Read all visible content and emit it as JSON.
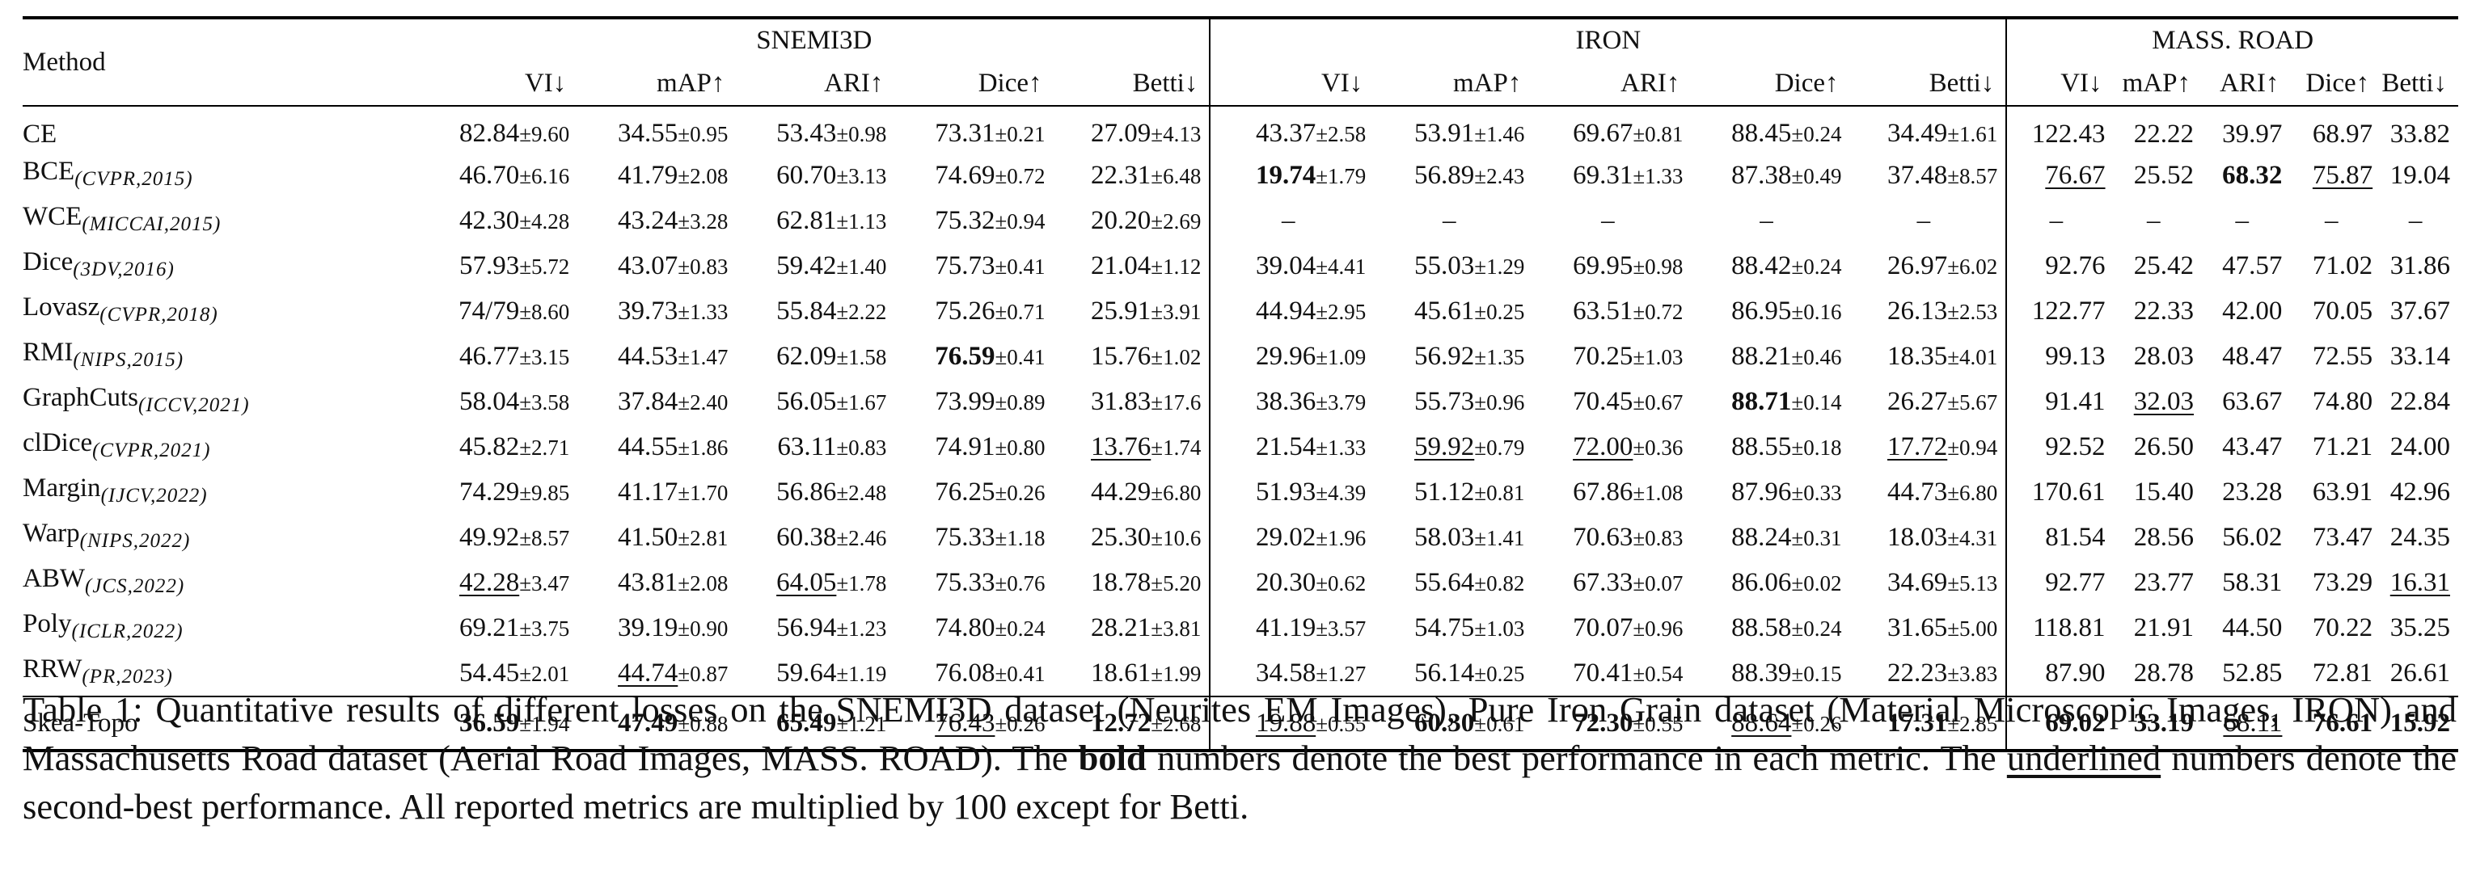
{
  "table": {
    "method_header": "Method",
    "groups": [
      {
        "name": "SNEMI3D",
        "metrics": [
          "VI↓",
          "mAP↑",
          "ARI↑",
          "Dice↑",
          "Betti↓"
        ]
      },
      {
        "name": "IRON",
        "metrics": [
          "VI↓",
          "mAP↑",
          "ARI↑",
          "Dice↑",
          "Betti↓"
        ]
      },
      {
        "name": "MASS. ROAD",
        "metrics": [
          "VI↓",
          "mAP↑",
          "ARI↑",
          "Dice↑",
          "Betti↓"
        ]
      }
    ],
    "rows": [
      {
        "method": "CE",
        "venue": "",
        "cells": [
          {
            "v": "82.84",
            "pm": "±9.60"
          },
          {
            "v": "34.55",
            "pm": "±0.95"
          },
          {
            "v": "53.43",
            "pm": "±0.98"
          },
          {
            "v": "73.31",
            "pm": "±0.21"
          },
          {
            "v": "27.09",
            "pm": "±4.13"
          },
          {
            "v": "43.37",
            "pm": "±2.58"
          },
          {
            "v": "53.91",
            "pm": "±1.46"
          },
          {
            "v": "69.67",
            "pm": "±0.81"
          },
          {
            "v": "88.45",
            "pm": "±0.24"
          },
          {
            "v": "34.49",
            "pm": "±1.61"
          },
          {
            "v": "122.43"
          },
          {
            "v": "22.22"
          },
          {
            "v": "39.97"
          },
          {
            "v": "68.97"
          },
          {
            "v": "33.82"
          }
        ]
      },
      {
        "method": "BCE",
        "venue": "(CVPR,2015)",
        "cells": [
          {
            "v": "46.70",
            "pm": "±6.16"
          },
          {
            "v": "41.79",
            "pm": "±2.08"
          },
          {
            "v": "60.70",
            "pm": "±3.13"
          },
          {
            "v": "74.69",
            "pm": "±0.72"
          },
          {
            "v": "22.31",
            "pm": "±6.48"
          },
          {
            "v": "19.74",
            "pm": "±1.79",
            "s": "best"
          },
          {
            "v": "56.89",
            "pm": "±2.43"
          },
          {
            "v": "69.31",
            "pm": "±1.33"
          },
          {
            "v": "87.38",
            "pm": "±0.49"
          },
          {
            "v": "37.48",
            "pm": "±8.57"
          },
          {
            "v": "76.67",
            "s": "second"
          },
          {
            "v": "25.52"
          },
          {
            "v": "68.32",
            "s": "best"
          },
          {
            "v": "75.87",
            "s": "second"
          },
          {
            "v": "19.04"
          }
        ]
      },
      {
        "method": "WCE",
        "venue": "(MICCAI,2015)",
        "cells": [
          {
            "v": "42.30",
            "pm": "±4.28"
          },
          {
            "v": "43.24",
            "pm": "±3.28"
          },
          {
            "v": "62.81",
            "pm": "±1.13"
          },
          {
            "v": "75.32",
            "pm": "±0.94"
          },
          {
            "v": "20.20",
            "pm": "±2.69"
          },
          {
            "v": "–"
          },
          {
            "v": "–"
          },
          {
            "v": "–"
          },
          {
            "v": "–"
          },
          {
            "v": "–"
          },
          {
            "v": "–"
          },
          {
            "v": "–"
          },
          {
            "v": "–"
          },
          {
            "v": "–"
          },
          {
            "v": "–"
          }
        ]
      },
      {
        "method": "Dice",
        "venue": "(3DV,2016)",
        "cells": [
          {
            "v": "57.93",
            "pm": "±5.72"
          },
          {
            "v": "43.07",
            "pm": "±0.83"
          },
          {
            "v": "59.42",
            "pm": "±1.40"
          },
          {
            "v": "75.73",
            "pm": "±0.41"
          },
          {
            "v": "21.04",
            "pm": "±1.12"
          },
          {
            "v": "39.04",
            "pm": "±4.41"
          },
          {
            "v": "55.03",
            "pm": "±1.29"
          },
          {
            "v": "69.95",
            "pm": "±0.98"
          },
          {
            "v": "88.42",
            "pm": "±0.24"
          },
          {
            "v": "26.97",
            "pm": "±6.02"
          },
          {
            "v": "92.76"
          },
          {
            "v": "25.42"
          },
          {
            "v": "47.57"
          },
          {
            "v": "71.02"
          },
          {
            "v": "31.86"
          }
        ]
      },
      {
        "method": "Lovasz",
        "venue": "(CVPR,2018)",
        "cells": [
          {
            "v": "74/79",
            "pm": "±8.60"
          },
          {
            "v": "39.73",
            "pm": "±1.33"
          },
          {
            "v": "55.84",
            "pm": "±2.22"
          },
          {
            "v": "75.26",
            "pm": "±0.71"
          },
          {
            "v": "25.91",
            "pm": "±3.91"
          },
          {
            "v": "44.94",
            "pm": "±2.95"
          },
          {
            "v": "45.61",
            "pm": "±0.25"
          },
          {
            "v": "63.51",
            "pm": "±0.72"
          },
          {
            "v": "86.95",
            "pm": "±0.16"
          },
          {
            "v": "26.13",
            "pm": "±2.53"
          },
          {
            "v": "122.77"
          },
          {
            "v": "22.33"
          },
          {
            "v": "42.00"
          },
          {
            "v": "70.05"
          },
          {
            "v": "37.67"
          }
        ]
      },
      {
        "method": "RMI",
        "venue": "(NIPS,2015)",
        "cells": [
          {
            "v": "46.77",
            "pm": "±3.15"
          },
          {
            "v": "44.53",
            "pm": "±1.47"
          },
          {
            "v": "62.09",
            "pm": "±1.58"
          },
          {
            "v": "76.59",
            "pm": "±0.41",
            "s": "best"
          },
          {
            "v": "15.76",
            "pm": "±1.02"
          },
          {
            "v": "29.96",
            "pm": "±1.09"
          },
          {
            "v": "56.92",
            "pm": "±1.35"
          },
          {
            "v": "70.25",
            "pm": "±1.03"
          },
          {
            "v": "88.21",
            "pm": "±0.46"
          },
          {
            "v": "18.35",
            "pm": "±4.01"
          },
          {
            "v": "99.13"
          },
          {
            "v": "28.03"
          },
          {
            "v": "48.47"
          },
          {
            "v": "72.55"
          },
          {
            "v": "33.14"
          }
        ]
      },
      {
        "method": "GraphCuts",
        "venue": "(ICCV,2021)",
        "cells": [
          {
            "v": "58.04",
            "pm": "±3.58"
          },
          {
            "v": "37.84",
            "pm": "±2.40"
          },
          {
            "v": "56.05",
            "pm": "±1.67"
          },
          {
            "v": "73.99",
            "pm": "±0.89"
          },
          {
            "v": "31.83",
            "pm": "±17.6"
          },
          {
            "v": "38.36",
            "pm": "±3.79"
          },
          {
            "v": "55.73",
            "pm": "±0.96"
          },
          {
            "v": "70.45",
            "pm": "±0.67"
          },
          {
            "v": "88.71",
            "pm": "±0.14",
            "s": "best"
          },
          {
            "v": "26.27",
            "pm": "±5.67"
          },
          {
            "v": "91.41"
          },
          {
            "v": "32.03",
            "s": "second"
          },
          {
            "v": "63.67"
          },
          {
            "v": "74.80"
          },
          {
            "v": "22.84"
          }
        ]
      },
      {
        "method": "clDice",
        "venue": "(CVPR,2021)",
        "cells": [
          {
            "v": "45.82",
            "pm": "±2.71"
          },
          {
            "v": "44.55",
            "pm": "±1.86"
          },
          {
            "v": "63.11",
            "pm": "±0.83"
          },
          {
            "v": "74.91",
            "pm": "±0.80"
          },
          {
            "v": "13.76",
            "pm": "±1.74",
            "s": "second"
          },
          {
            "v": "21.54",
            "pm": "±1.33"
          },
          {
            "v": "59.92",
            "pm": "±0.79",
            "s": "second"
          },
          {
            "v": "72.00",
            "pm": "±0.36",
            "s": "second"
          },
          {
            "v": "88.55",
            "pm": "±0.18"
          },
          {
            "v": "17.72",
            "pm": "±0.94",
            "s": "second"
          },
          {
            "v": "92.52"
          },
          {
            "v": "26.50"
          },
          {
            "v": "43.47"
          },
          {
            "v": "71.21"
          },
          {
            "v": "24.00"
          }
        ]
      },
      {
        "method": "Margin",
        "venue": "(IJCV,2022)",
        "cells": [
          {
            "v": "74.29",
            "pm": "±9.85"
          },
          {
            "v": "41.17",
            "pm": "±1.70"
          },
          {
            "v": "56.86",
            "pm": "±2.48"
          },
          {
            "v": "76.25",
            "pm": "±0.26"
          },
          {
            "v": "44.29",
            "pm": "±6.80"
          },
          {
            "v": "51.93",
            "pm": "±4.39"
          },
          {
            "v": "51.12",
            "pm": "±0.81"
          },
          {
            "v": "67.86",
            "pm": "±1.08"
          },
          {
            "v": "87.96",
            "pm": "±0.33"
          },
          {
            "v": "44.73",
            "pm": "±6.80"
          },
          {
            "v": "170.61"
          },
          {
            "v": "15.40"
          },
          {
            "v": "23.28"
          },
          {
            "v": "63.91"
          },
          {
            "v": "42.96"
          }
        ]
      },
      {
        "method": "Warp",
        "venue": "(NIPS,2022)",
        "cells": [
          {
            "v": "49.92",
            "pm": "±8.57"
          },
          {
            "v": "41.50",
            "pm": "±2.81"
          },
          {
            "v": "60.38",
            "pm": "±2.46"
          },
          {
            "v": "75.33",
            "pm": "±1.18"
          },
          {
            "v": "25.30",
            "pm": "±10.6"
          },
          {
            "v": "29.02",
            "pm": "±1.96"
          },
          {
            "v": "58.03",
            "pm": "±1.41"
          },
          {
            "v": "70.63",
            "pm": "±0.83"
          },
          {
            "v": "88.24",
            "pm": "±0.31"
          },
          {
            "v": "18.03",
            "pm": "±4.31"
          },
          {
            "v": "81.54"
          },
          {
            "v": "28.56"
          },
          {
            "v": "56.02"
          },
          {
            "v": "73.47"
          },
          {
            "v": "24.35"
          }
        ]
      },
      {
        "method": "ABW",
        "venue": "(JCS,2022)",
        "cells": [
          {
            "v": "42.28",
            "pm": "±3.47",
            "s": "second"
          },
          {
            "v": "43.81",
            "pm": "±2.08"
          },
          {
            "v": "64.05",
            "pm": "±1.78",
            "s": "second"
          },
          {
            "v": "75.33",
            "pm": "±0.76"
          },
          {
            "v": "18.78",
            "pm": "±5.20"
          },
          {
            "v": "20.30",
            "pm": "±0.62"
          },
          {
            "v": "55.64",
            "pm": "±0.82"
          },
          {
            "v": "67.33",
            "pm": "±0.07"
          },
          {
            "v": "86.06",
            "pm": "±0.02"
          },
          {
            "v": "34.69",
            "pm": "±5.13"
          },
          {
            "v": "92.77"
          },
          {
            "v": "23.77"
          },
          {
            "v": "58.31"
          },
          {
            "v": "73.29"
          },
          {
            "v": "16.31",
            "s": "second"
          }
        ]
      },
      {
        "method": "Poly",
        "venue": "(ICLR,2022)",
        "cells": [
          {
            "v": "69.21",
            "pm": "±3.75"
          },
          {
            "v": "39.19",
            "pm": "±0.90"
          },
          {
            "v": "56.94",
            "pm": "±1.23"
          },
          {
            "v": "74.80",
            "pm": "±0.24"
          },
          {
            "v": "28.21",
            "pm": "±3.81"
          },
          {
            "v": "41.19",
            "pm": "±3.57"
          },
          {
            "v": "54.75",
            "pm": "±1.03"
          },
          {
            "v": "70.07",
            "pm": "±0.96"
          },
          {
            "v": "88.58",
            "pm": "±0.24"
          },
          {
            "v": "31.65",
            "pm": "±5.00"
          },
          {
            "v": "118.81"
          },
          {
            "v": "21.91"
          },
          {
            "v": "44.50"
          },
          {
            "v": "70.22"
          },
          {
            "v": "35.25"
          }
        ]
      },
      {
        "method": "RRW",
        "venue": "(PR,2023)",
        "cells": [
          {
            "v": "54.45",
            "pm": "±2.01"
          },
          {
            "v": "44.74",
            "pm": "±0.87",
            "s": "second"
          },
          {
            "v": "59.64",
            "pm": "±1.19"
          },
          {
            "v": "76.08",
            "pm": "±0.41"
          },
          {
            "v": "18.61",
            "pm": "±1.99"
          },
          {
            "v": "34.58",
            "pm": "±1.27"
          },
          {
            "v": "56.14",
            "pm": "±0.25"
          },
          {
            "v": "70.41",
            "pm": "±0.54"
          },
          {
            "v": "88.39",
            "pm": "±0.15"
          },
          {
            "v": "22.23",
            "pm": "±3.83"
          },
          {
            "v": "87.90"
          },
          {
            "v": "28.78"
          },
          {
            "v": "52.85"
          },
          {
            "v": "72.81"
          },
          {
            "v": "26.61"
          }
        ]
      }
    ],
    "final_row": {
      "method": "Skea-Topo",
      "venue": "",
      "cells": [
        {
          "v": "36.59",
          "pm": "±1.94",
          "s": "best"
        },
        {
          "v": "47.49",
          "pm": "±0.88",
          "s": "best"
        },
        {
          "v": "65.49",
          "pm": "±1.21",
          "s": "best"
        },
        {
          "v": "76.43",
          "pm": "±0.26",
          "s": "second"
        },
        {
          "v": "12.72",
          "pm": "±2.68",
          "s": "best"
        },
        {
          "v": "19.88",
          "pm": "±0.55",
          "s": "second"
        },
        {
          "v": "60.30",
          "pm": "±0.61",
          "s": "best"
        },
        {
          "v": "72.30",
          "pm": "±0.55",
          "s": "best"
        },
        {
          "v": "88.64",
          "pm": "±0.26",
          "s": "second"
        },
        {
          "v": "17.31",
          "pm": "±2.85",
          "s": "best"
        },
        {
          "v": "69.02",
          "s": "best"
        },
        {
          "v": "33.19",
          "s": "best"
        },
        {
          "v": "68.11",
          "s": "second"
        },
        {
          "v": "76.61",
          "s": "best"
        },
        {
          "v": "15.92",
          "s": "best"
        }
      ]
    }
  },
  "caption": {
    "part1": "Table 1: Quantitative results of different losses on the SNEMI3D dataset (Neurites EM Images), Pure Iron Grain dataset (Material Microscopic Images, IRON) and Massachusetts Road dataset (Aerial Road Images, MASS. ROAD). The ",
    "bold": "bold",
    "part2": " numbers denote the best performance in each metric. The ",
    "underlined": "underlined",
    "part3": " numbers denote the second-best performance. All reported metrics are multiplied by 100 except for Betti."
  }
}
